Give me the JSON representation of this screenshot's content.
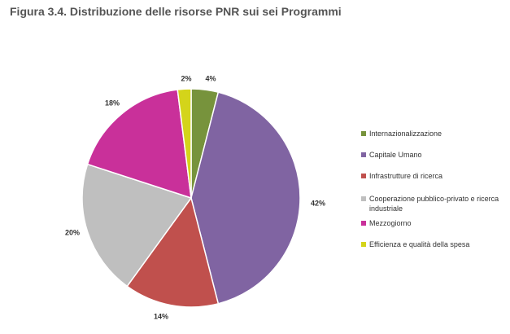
{
  "figure": {
    "title": "Figura 3.4. Distribuzione delle risorse PNR sui sei Programmi"
  },
  "chart_data": {
    "type": "pie",
    "title": "Figura 3.4. Distribuzione delle risorse PNR sui sei Programmi",
    "legend_position": "right",
    "start_angle_deg": 0,
    "direction": "clockwise",
    "slices": [
      {
        "name": "Internazionalizzazione",
        "value": 4,
        "label": "4%",
        "color": "#77933c"
      },
      {
        "name": "Capitale Umano",
        "value": 42,
        "label": "42%",
        "color": "#8064a2"
      },
      {
        "name": "Infrastrutture di ricerca",
        "value": 14,
        "label": "14%",
        "color": "#c0504d"
      },
      {
        "name": "Cooperazione pubblico-privato e ricerca industriale",
        "value": 20,
        "label": "20%",
        "color": "#bfbfbf"
      },
      {
        "name": "Mezzogiorno",
        "value": 18,
        "label": "18%",
        "color": "#c9309a"
      },
      {
        "name": "Efficienza e qualità della spesa",
        "value": 2,
        "label": "2%",
        "color": "#d4d41a"
      }
    ]
  }
}
